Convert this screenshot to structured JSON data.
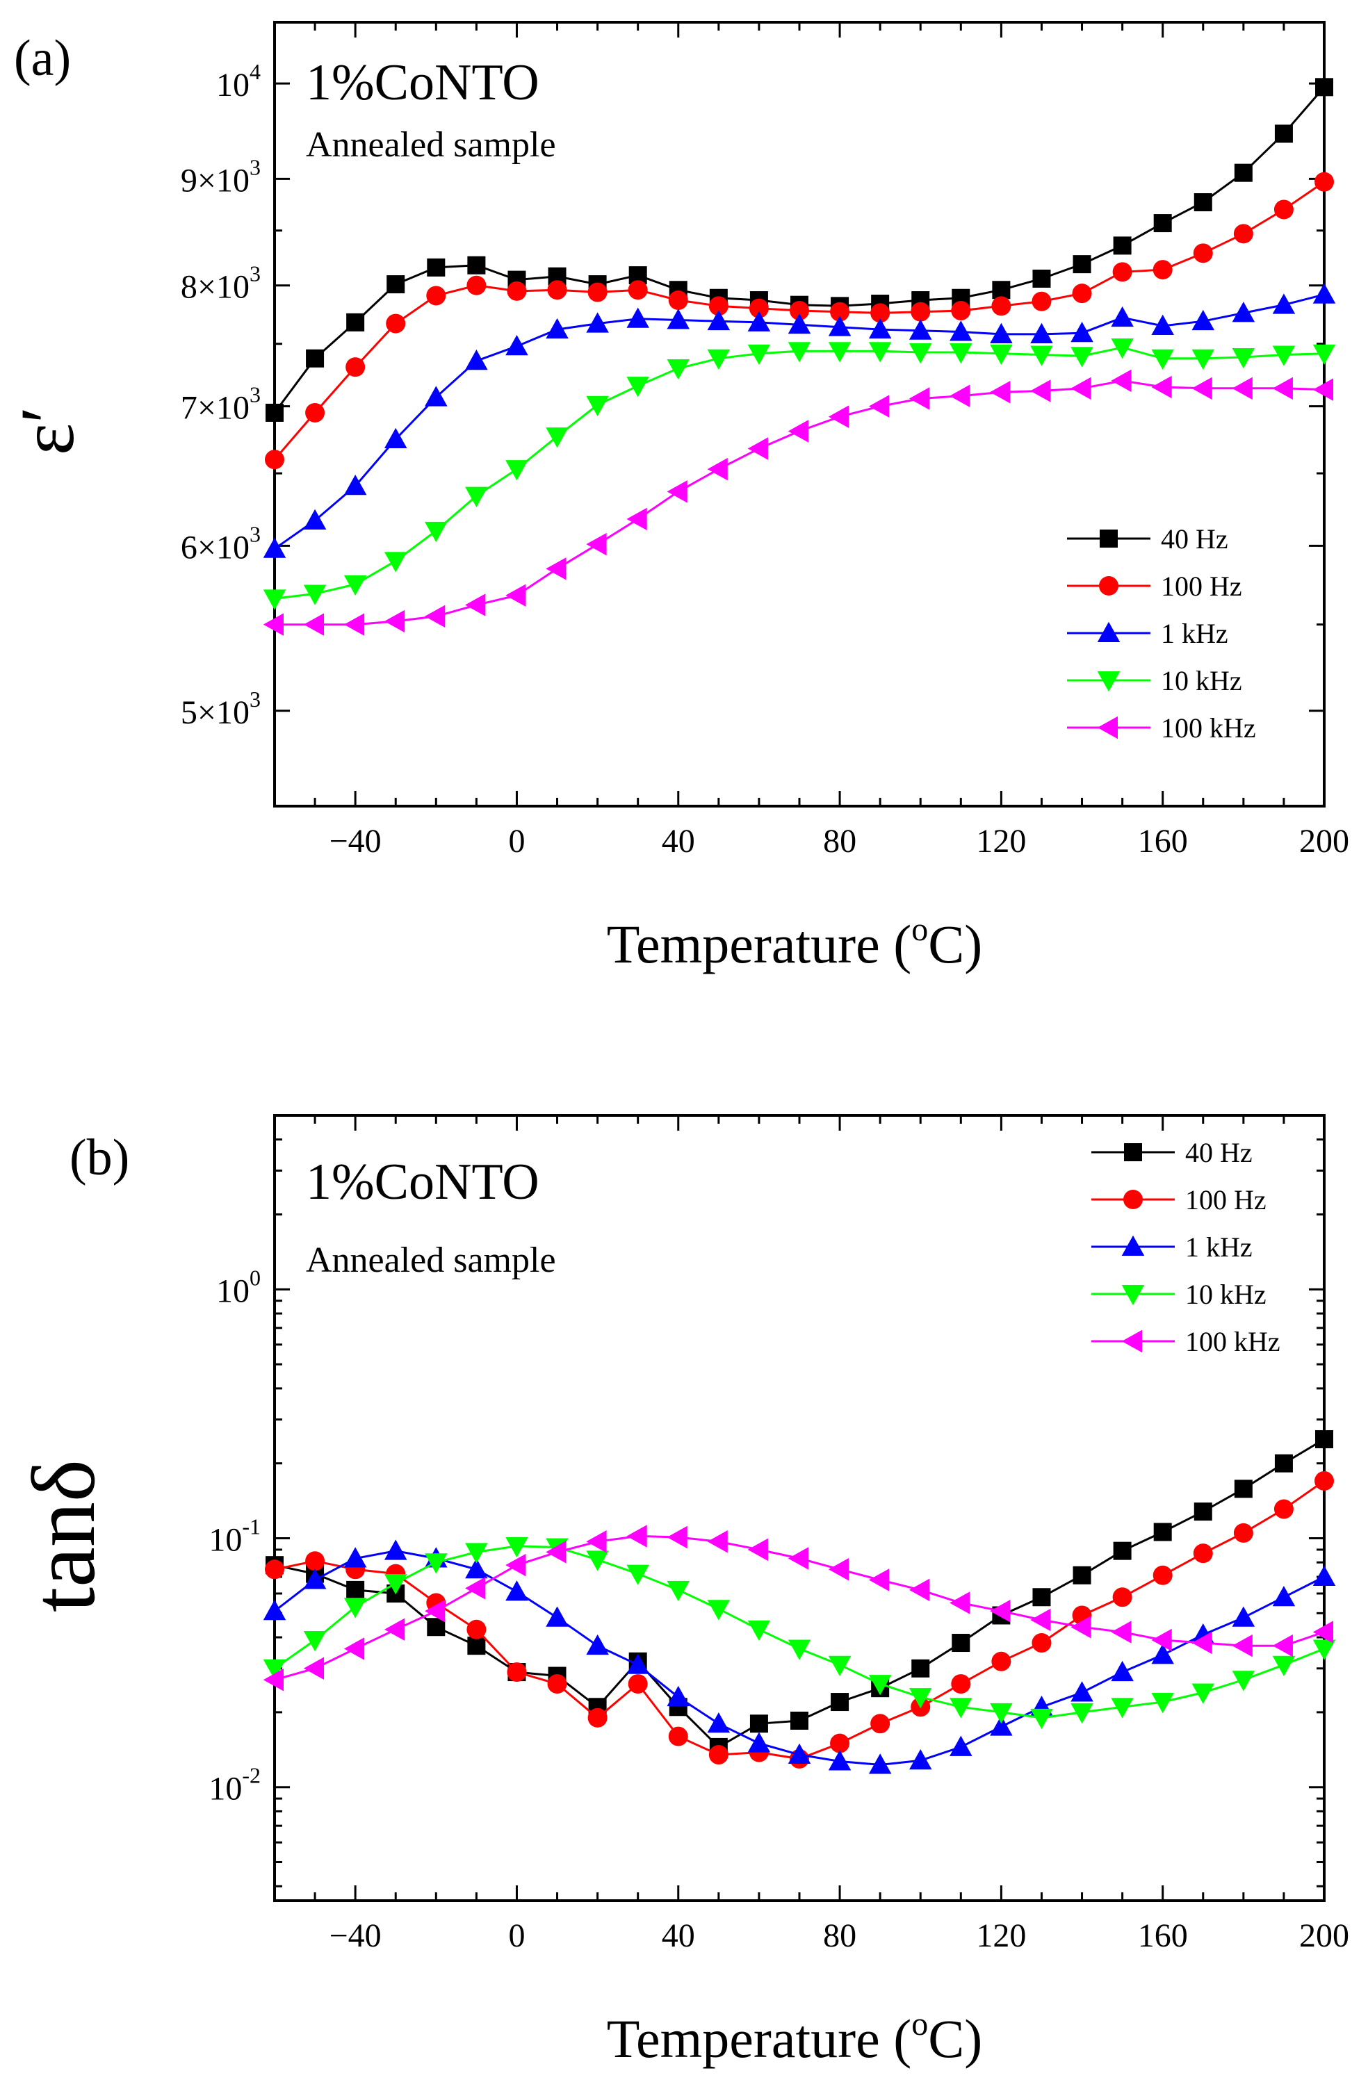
{
  "chart_data": [
    {
      "type": "line",
      "panel_label": "(a)",
      "title": "1%CoNTO",
      "subtitle": "Annealed sample",
      "xlabel_main": "Temperature (",
      "xlabel_sup": "o",
      "xlabel_end": "C)",
      "ylabel": "ε′",
      "yscale": "log",
      "xlim": [
        -60,
        200
      ],
      "ylim": [
        4500,
        10700
      ],
      "x_ticks": [
        -40,
        0,
        40,
        80,
        120,
        160,
        200
      ],
      "x_tick_labels": [
        "−40",
        "0",
        "40",
        "80",
        "120",
        "160",
        "200"
      ],
      "y_ticks": [
        {
          "value": 5000,
          "mant": "5×10",
          "exp": "3"
        },
        {
          "value": 6000,
          "mant": "6×10",
          "exp": "3"
        },
        {
          "value": 7000,
          "mant": "7×10",
          "exp": "3"
        },
        {
          "value": 8000,
          "mant": "8×10",
          "exp": "3"
        },
        {
          "value": 9000,
          "mant": "9×10",
          "exp": "3"
        },
        {
          "value": 10000,
          "mant": "10",
          "exp": "4"
        }
      ],
      "legend_position": "bottom-right",
      "x": [
        -60,
        -50,
        -40,
        -30,
        -20,
        -10,
        0,
        10,
        20,
        30,
        40,
        50,
        60,
        70,
        80,
        90,
        100,
        110,
        120,
        130,
        140,
        150,
        160,
        170,
        180,
        190,
        200
      ],
      "series": [
        {
          "name": "40 Hz",
          "color": "#000000",
          "marker": "square",
          "values": [
            6950,
            7380,
            7680,
            8010,
            8160,
            8180,
            8050,
            8080,
            8010,
            8090,
            7960,
            7890,
            7870,
            7830,
            7820,
            7840,
            7870,
            7890,
            7960,
            8060,
            8190,
            8360,
            8570,
            8770,
            9060,
            9460,
            9960
          ]
        },
        {
          "name": "100 Hz",
          "color": "#ff0000",
          "marker": "circle",
          "values": [
            6600,
            6950,
            7310,
            7670,
            7910,
            8000,
            7950,
            7960,
            7940,
            7960,
            7870,
            7820,
            7800,
            7780,
            7770,
            7760,
            7770,
            7780,
            7820,
            7860,
            7930,
            8120,
            8140,
            8290,
            8470,
            8700,
            8970
          ]
        },
        {
          "name": "1 kHz",
          "color": "#0000ff",
          "marker": "triangle-up",
          "values": [
            5980,
            6170,
            6410,
            6750,
            7070,
            7360,
            7480,
            7620,
            7670,
            7710,
            7700,
            7690,
            7680,
            7660,
            7640,
            7620,
            7610,
            7600,
            7580,
            7580,
            7590,
            7720,
            7650,
            7690,
            7760,
            7830,
            7920
          ]
        },
        {
          "name": "10 kHz",
          "color": "#00ff00",
          "marker": "triangle-down",
          "values": [
            5660,
            5690,
            5750,
            5900,
            6100,
            6340,
            6530,
            6770,
            7010,
            7160,
            7300,
            7380,
            7420,
            7440,
            7440,
            7440,
            7430,
            7430,
            7420,
            7410,
            7400,
            7470,
            7380,
            7380,
            7390,
            7410,
            7420
          ]
        },
        {
          "name": "100 kHz",
          "color": "#ff00ff",
          "marker": "triangle-left",
          "values": [
            5500,
            5500,
            5500,
            5520,
            5550,
            5620,
            5680,
            5850,
            6010,
            6180,
            6370,
            6530,
            6680,
            6810,
            6920,
            7000,
            7060,
            7080,
            7110,
            7120,
            7140,
            7200,
            7150,
            7140,
            7140,
            7140,
            7130
          ]
        }
      ]
    },
    {
      "type": "line",
      "panel_label": "(b)",
      "title": "1%CoNTO",
      "subtitle": "Annealed sample",
      "xlabel_main": "Temperature (",
      "xlabel_sup": "o",
      "xlabel_end": "C)",
      "ylabel": "tanδ",
      "yscale": "log",
      "xlim": [
        -60,
        200
      ],
      "ylim": [
        0.0035,
        5
      ],
      "x_ticks": [
        -40,
        0,
        40,
        80,
        120,
        160,
        200
      ],
      "x_tick_labels": [
        "−40",
        "0",
        "40",
        "80",
        "120",
        "160",
        "200"
      ],
      "y_ticks": [
        {
          "value": 0.01,
          "mant": "10",
          "exp": "-2"
        },
        {
          "value": 0.1,
          "mant": "10",
          "exp": "-1"
        },
        {
          "value": 1,
          "mant": "10",
          "exp": "0"
        }
      ],
      "legend_position": "top-right",
      "x": [
        -60,
        -50,
        -40,
        -30,
        -20,
        -10,
        0,
        10,
        20,
        30,
        40,
        50,
        60,
        70,
        80,
        90,
        100,
        110,
        120,
        130,
        140,
        150,
        160,
        170,
        180,
        190,
        200
      ],
      "series": [
        {
          "name": "40 Hz",
          "color": "#000000",
          "marker": "square",
          "values": [
            0.078,
            0.072,
            0.062,
            0.06,
            0.044,
            0.037,
            0.029,
            0.028,
            0.021,
            0.032,
            0.021,
            0.0145,
            0.018,
            0.0185,
            0.022,
            0.025,
            0.03,
            0.038,
            0.049,
            0.058,
            0.071,
            0.089,
            0.106,
            0.128,
            0.158,
            0.2,
            0.25
          ]
        },
        {
          "name": "100 Hz",
          "color": "#ff0000",
          "marker": "circle",
          "values": [
            0.075,
            0.081,
            0.075,
            0.072,
            0.055,
            0.043,
            0.029,
            0.026,
            0.019,
            0.026,
            0.016,
            0.0135,
            0.0138,
            0.013,
            0.015,
            0.018,
            0.021,
            0.026,
            0.032,
            0.038,
            0.049,
            0.058,
            0.071,
            0.087,
            0.105,
            0.131,
            0.17
          ]
        },
        {
          "name": "1 kHz",
          "color": "#0000ff",
          "marker": "triangle-up",
          "values": [
            0.051,
            0.068,
            0.083,
            0.089,
            0.083,
            0.075,
            0.061,
            0.048,
            0.037,
            0.031,
            0.023,
            0.018,
            0.015,
            0.0135,
            0.0127,
            0.0123,
            0.0128,
            0.0145,
            0.0175,
            0.021,
            0.024,
            0.029,
            0.034,
            0.041,
            0.048,
            0.058,
            0.07
          ]
        },
        {
          "name": "10 kHz",
          "color": "#00ff00",
          "marker": "triangle-down",
          "values": [
            0.03,
            0.039,
            0.053,
            0.066,
            0.08,
            0.088,
            0.093,
            0.092,
            0.082,
            0.072,
            0.062,
            0.052,
            0.043,
            0.036,
            0.031,
            0.026,
            0.023,
            0.021,
            0.02,
            0.019,
            0.02,
            0.021,
            0.022,
            0.024,
            0.027,
            0.031,
            0.036
          ]
        },
        {
          "name": "100 kHz",
          "color": "#ff00ff",
          "marker": "triangle-left",
          "values": [
            0.027,
            0.03,
            0.036,
            0.043,
            0.051,
            0.063,
            0.078,
            0.088,
            0.097,
            0.102,
            0.101,
            0.097,
            0.09,
            0.083,
            0.075,
            0.068,
            0.062,
            0.055,
            0.051,
            0.047,
            0.044,
            0.042,
            0.039,
            0.038,
            0.037,
            0.037,
            0.042
          ]
        }
      ]
    }
  ]
}
